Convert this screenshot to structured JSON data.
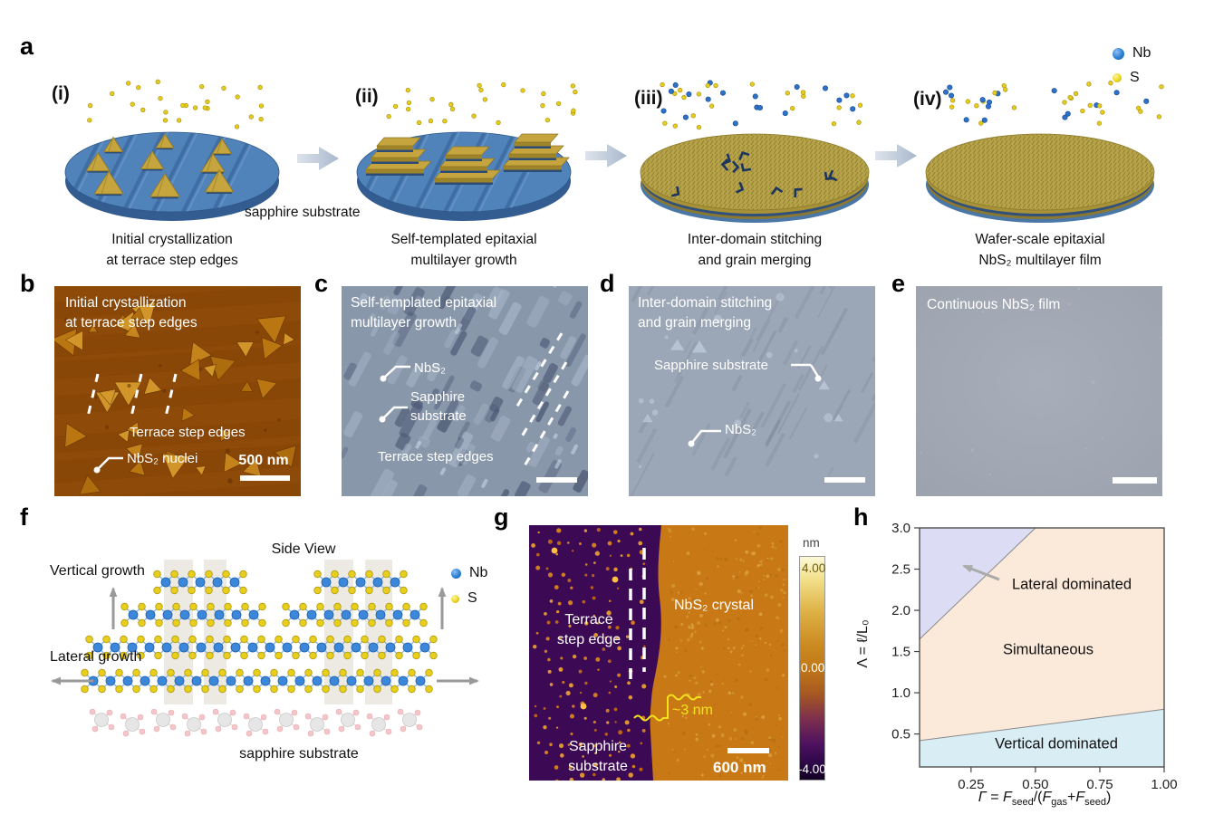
{
  "figure": {
    "legend_top": {
      "nb_label": "Nb",
      "s_label": "S"
    },
    "panel_a": {
      "label": "a",
      "substrate_label": "sapphire substrate",
      "stages": [
        {
          "numeral": "(i)",
          "caption": [
            "Initial crystallization",
            "at terrace step edges"
          ]
        },
        {
          "numeral": "(ii)",
          "caption": [
            "Self-templated epitaxial",
            "multilayer growth"
          ]
        },
        {
          "numeral": "(iii)",
          "caption": [
            "Inter-domain stitching",
            "and grain merging"
          ]
        },
        {
          "numeral": "(iv)",
          "caption": [
            "Wafer-scale epitaxial",
            "NbS₂ multilayer film"
          ]
        }
      ]
    },
    "panel_b": {
      "label": "b",
      "title": [
        "Initial crystallization",
        "at terrace step edges"
      ],
      "terrace_label": "Terrace step edges",
      "nuclei_label": "NbS₂ nuclei",
      "scale_bar": "500 nm"
    },
    "panel_c": {
      "label": "c",
      "title": [
        "Self-templated epitaxial",
        "multilayer growth"
      ],
      "nbs2_label": "NbS₂",
      "sapphire_label": [
        "Sapphire",
        "substrate"
      ],
      "terrace_label": "Terrace step edges"
    },
    "panel_d": {
      "label": "d",
      "title": [
        "Inter-domain stitching",
        "and grain merging"
      ],
      "sapphire_label": "Sapphire substrate",
      "nbs2_label": "NbS₂"
    },
    "panel_e": {
      "label": "e",
      "title": "Continuous NbS₂ film"
    },
    "panel_f": {
      "label": "f",
      "title": "Side View",
      "vertical_label": "Vertical growth",
      "lateral_label": "Lateral growth",
      "substrate_label": "sapphire substrate",
      "legend": {
        "nb": "Nb",
        "s": "S"
      }
    },
    "panel_g": {
      "label": "g",
      "terrace_label": [
        "Terrace",
        "step edge"
      ],
      "crystal_label": "NbS₂ crystal",
      "sapphire_label": [
        "Sapphire",
        "substrate"
      ],
      "step_height": "~3 nm",
      "scale_bar": "600 nm",
      "colorbar": {
        "unit": "nm",
        "max": "4.00",
        "mid": "0.00",
        "min": "-4.00"
      }
    },
    "panel_h": {
      "label": "h",
      "xlabel_parts": {
        "gamma": "Γ",
        "eq": " = ",
        "f1": "F",
        "s1": "seed",
        "sl": "/(",
        "f2": "F",
        "s2": "gas",
        "pl": "+",
        "f3": "F",
        "s3": "seed",
        "cp": ")"
      },
      "ylabel": "Λ = ℓ/L₀"
    },
    "colors": {
      "nb_atom": "#3b87d9",
      "s_atom": "#e8cf1d",
      "wafer_blue": "#5083ba",
      "gold_film": "#b7a34a",
      "afm_b_background": "#8d4a08",
      "optical_c_background": "#8997ab",
      "optical_d_background": "#9ba6b6",
      "film_e_background": "#a1a8b4",
      "afm_g_purple": "#3c0a54",
      "afm_g_orange": "#c87916"
    }
  },
  "chart_data": {
    "type": "area",
    "xlabel": "Γ = F_seed/(F_gas+F_seed)",
    "ylabel": "Λ = ℓ/L₀",
    "xlim": [
      0.05,
      1.0
    ],
    "ylim": [
      0.1,
      3.0
    ],
    "grid": false,
    "legend_position": "none",
    "x_tick_values": [
      0.25,
      0.5,
      0.75,
      1.0
    ],
    "x_tick_labels": [
      "0.25",
      "0.50",
      "0.75",
      "1.00"
    ],
    "y_tick_values": [
      0.5,
      1.0,
      1.5,
      2.0,
      2.5,
      3.0
    ],
    "y_tick_labels": [
      "0.5",
      "1.0",
      "1.5",
      "2.0",
      "2.5",
      "3.0"
    ],
    "regions": [
      {
        "label": "Lateral dominated",
        "color": "#dcdcf4"
      },
      {
        "label": "Simultaneous",
        "color": "#fbe9da"
      },
      {
        "label": "Vertical dominated",
        "color": "#d9edf4"
      }
    ],
    "boundary_lateral_simultaneous": {
      "x1": 0.05,
      "y1": 1.65,
      "x2": 0.5,
      "y2": 3.0
    },
    "boundary_simultaneous_vertical": {
      "x1": 0.05,
      "y1": 0.42,
      "x2": 1.0,
      "y2": 0.8
    }
  }
}
